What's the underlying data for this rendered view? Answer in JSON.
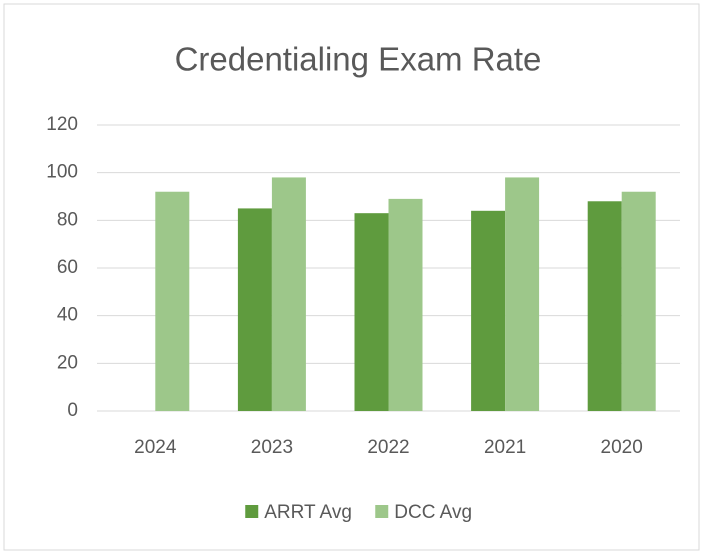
{
  "chart_data": {
    "type": "bar",
    "title": "Credentialing Exam Rate",
    "categories": [
      "2024",
      "2023",
      "2022",
      "2021",
      "2020"
    ],
    "series": [
      {
        "name": "ARRT Avg",
        "color": "#5f9b3e",
        "values": [
          null,
          85,
          83,
          84,
          88
        ]
      },
      {
        "name": "DCC Avg",
        "color": "#9dc78a",
        "values": [
          92,
          98,
          89,
          98,
          92
        ]
      }
    ],
    "ylim": [
      0,
      120
    ],
    "yticks": [
      0,
      20,
      40,
      60,
      80,
      100,
      120
    ],
    "grid": true,
    "legend": "bottom"
  }
}
